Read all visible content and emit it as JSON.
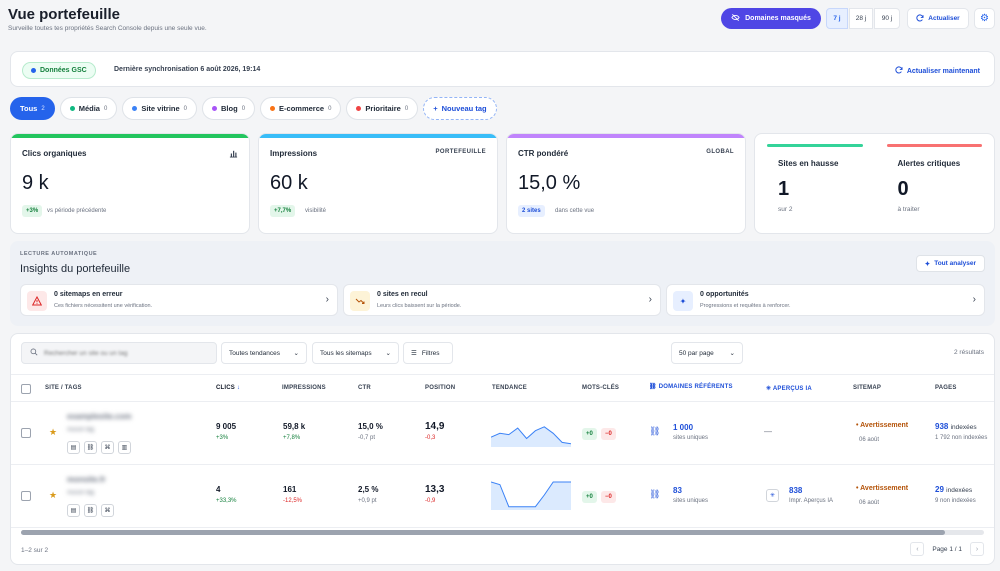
{
  "header": {
    "title": "Vue portefeuille",
    "subtitle": "Surveille toutes tes propriétés Search Console depuis une seule vue.",
    "hide_domains_label": "Domaines masqués",
    "periods": [
      "7 j",
      "28 j",
      "90 j"
    ],
    "active_period": "7 j",
    "refresh_label": "Actualiser"
  },
  "sync": {
    "badge": "Données GSC",
    "text": "Dernière synchronisation 6 août 2026, 19:14",
    "refresh_now": "Actualiser maintenant"
  },
  "tags": [
    {
      "label": "Tous",
      "count": "2",
      "color": "#ffffff"
    },
    {
      "label": "Média",
      "count": "0",
      "color": "#10b981"
    },
    {
      "label": "Site vitrine",
      "count": "0",
      "color": "#3b82f6"
    },
    {
      "label": "Blog",
      "count": "0",
      "color": "#a855f7"
    },
    {
      "label": "E-commerce",
      "count": "0",
      "color": "#f97316"
    },
    {
      "label": "Prioritaire",
      "count": "0",
      "color": "#ef4444"
    }
  ],
  "new_tag": "Nouveau tag",
  "kpis": [
    {
      "label": "Clics organiques",
      "right": "",
      "value": "9 k",
      "delta": "+3%",
      "note": "vs période précédente",
      "color": "#22c55e"
    },
    {
      "label": "Impressions",
      "right": "PORTEFEUILLE",
      "value": "60 k",
      "delta": "+7,7%",
      "note": "visibilité",
      "color": "#38bdf8"
    },
    {
      "label": "CTR pondéré",
      "right": "GLOBAL",
      "value": "15,0 %",
      "delta": "2 sites",
      "note": "dans cette vue",
      "color": "#c084fc"
    }
  ],
  "kpi_split": {
    "left": {
      "label": "Sites en hausse",
      "value": "1",
      "note": "sur 2",
      "color": "#34d399"
    },
    "right": {
      "label": "Alertes critiques",
      "value": "0",
      "note": "à traiter",
      "color": "#f87171"
    }
  },
  "insights": {
    "kicker": "LECTURE AUTOMATIQUE",
    "title": "Insights du portefeuille",
    "button": "Tout analyser",
    "cards": [
      {
        "title": "0 sitemaps en erreur",
        "sub": "Ces fichiers nécessitent une vérification.",
        "icon": "warning-icon"
      },
      {
        "title": "0 sites en recul",
        "sub": "Leurs clics baissent sur la période.",
        "icon": "trend-down-icon"
      },
      {
        "title": "0 opportunités",
        "sub": "Progressions et requêtes à renforcer.",
        "icon": "sparkle-icon"
      }
    ]
  },
  "toolbar": {
    "search_placeholder": "Rechercher un site ou un tag",
    "trend_filter": "Toutes tendances",
    "sitemap_filter": "Tous les sitemaps",
    "filters": "Filtres",
    "per_page": "50 par page",
    "results": "2 résultats"
  },
  "columns": {
    "site": "SITE / TAGS",
    "clicks": "CLICS",
    "impressions": "IMPRESSIONS",
    "ctr": "CTR",
    "position": "POSITION",
    "trend": "TENDANCE",
    "keywords": "MOTS-CLÉS",
    "referring": "DOMAINES RÉFÉRENTS",
    "ai": "APERÇUS IA",
    "sitemap": "SITEMAP",
    "pages": "PAGES"
  },
  "rows": [
    {
      "site": "examplesite.com",
      "tagline": "Aucun tag",
      "clicks": "9 005",
      "clicks_delta": "+3%",
      "impressions": "59,8 k",
      "impressions_delta": "+7,8%",
      "ctr": "15,0 %",
      "ctr_delta": "-0,7 pt",
      "position": "14,9",
      "position_delta": "-0,3",
      "kw_up": "+0",
      "kw_down": "−0",
      "referring": "1 000",
      "referring_sub": "sites uniques",
      "ai": "—",
      "ai_sub": "",
      "sitemap": "Avertissement",
      "sitemap_date": "06 août",
      "pages": "938",
      "pages_label": "indexées",
      "pages_sub": "1 792 non indexées",
      "trend": [
        0.7,
        0.55,
        0.6,
        0.35,
        0.75,
        0.45,
        0.3,
        0.55,
        0.9,
        0.95
      ]
    },
    {
      "site": "monsite.fr",
      "tagline": "Aucun tag",
      "clicks": "4",
      "clicks_delta": "+33,3%",
      "impressions": "161",
      "impressions_delta": "-12,5%",
      "ctr": "2,5 %",
      "ctr_delta": "+0,9 pt",
      "position": "13,3",
      "position_delta": "-0,9",
      "kw_up": "+0",
      "kw_down": "−0",
      "referring": "83",
      "referring_sub": "sites uniques",
      "ai": "838",
      "ai_sub": "Impr. Aperçus IA",
      "sitemap": "Avertissement",
      "sitemap_date": "06 août",
      "pages": "29",
      "pages_label": "indexées",
      "pages_sub": "9 non indexées",
      "trend": [
        0.0,
        0.1,
        0.95,
        0.95,
        0.95,
        0.95,
        0.5,
        0.0,
        0.0,
        0.0
      ]
    }
  ],
  "footer": {
    "range": "1–2 sur 2",
    "page": "Page 1 / 1"
  }
}
